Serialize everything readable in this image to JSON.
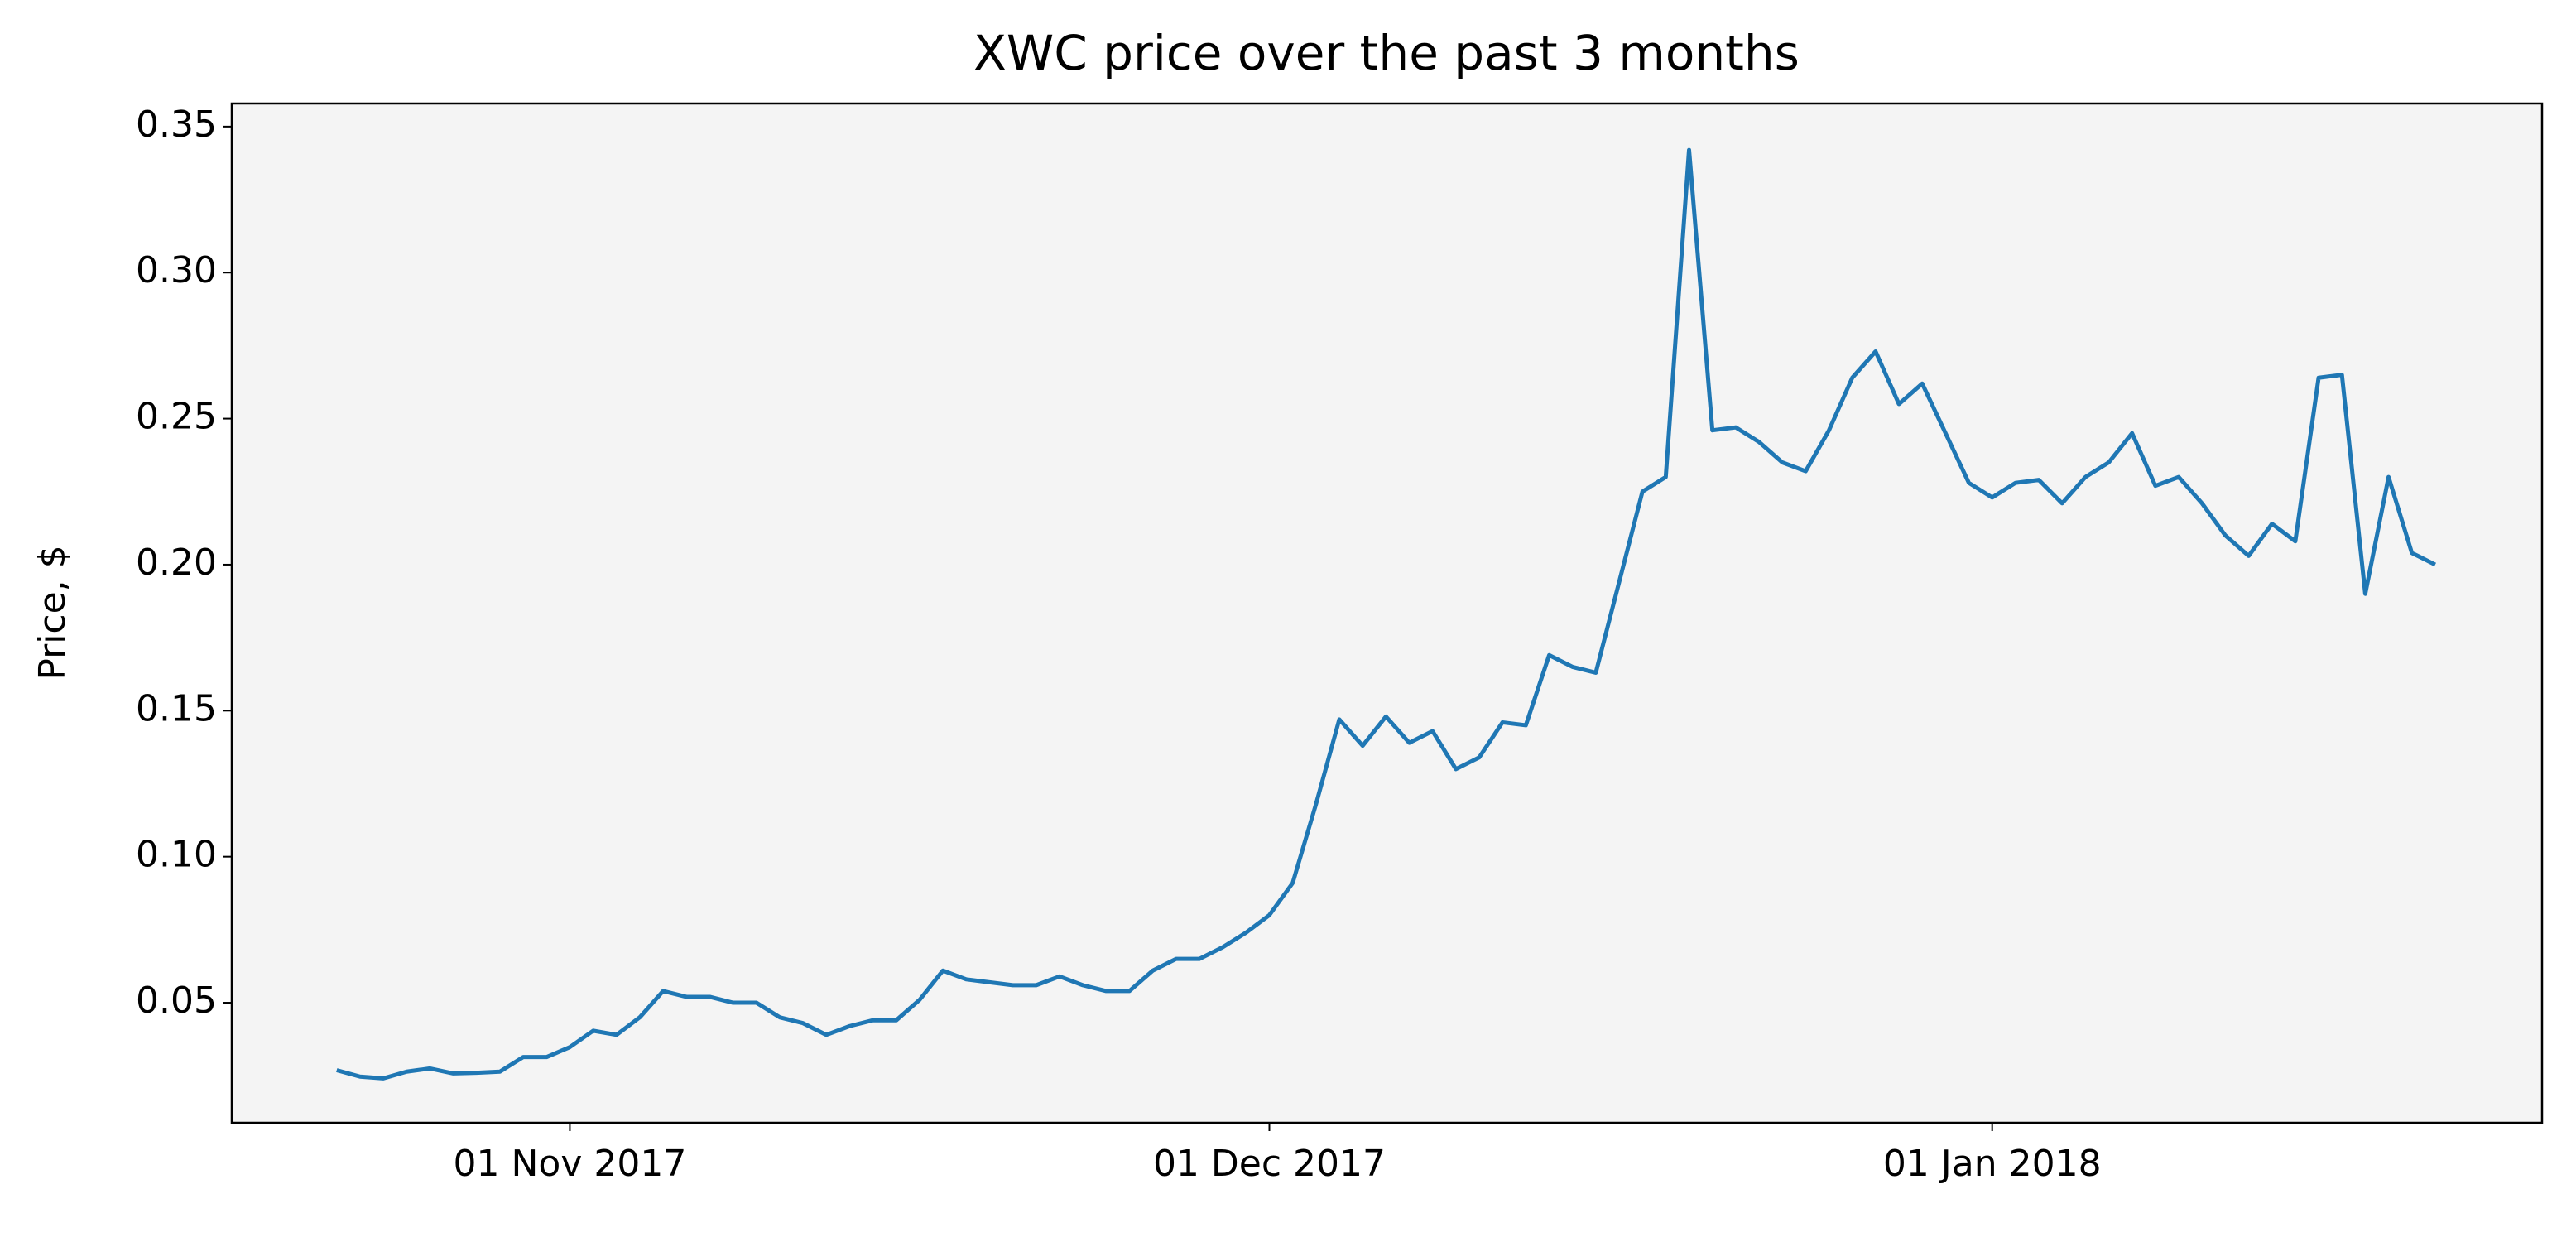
{
  "chart_data": {
    "type": "line",
    "title": "XWC price over the past 3 months",
    "ylabel": "Price, $",
    "color": "#1f77b4",
    "grid": false,
    "x": [
      "2017-10-22",
      "2017-10-23",
      "2017-10-24",
      "2017-10-25",
      "2017-10-26",
      "2017-10-27",
      "2017-10-28",
      "2017-10-29",
      "2017-10-30",
      "2017-10-31",
      "2017-11-01",
      "2017-11-02",
      "2017-11-03",
      "2017-11-04",
      "2017-11-05",
      "2017-11-06",
      "2017-11-07",
      "2017-11-08",
      "2017-11-09",
      "2017-11-10",
      "2017-11-11",
      "2017-11-12",
      "2017-11-13",
      "2017-11-14",
      "2017-11-15",
      "2017-11-16",
      "2017-11-17",
      "2017-11-18",
      "2017-11-19",
      "2017-11-20",
      "2017-11-21",
      "2017-11-22",
      "2017-11-23",
      "2017-11-24",
      "2017-11-25",
      "2017-11-26",
      "2017-11-27",
      "2017-11-28",
      "2017-11-29",
      "2017-11-30",
      "2017-12-01",
      "2017-12-02",
      "2017-12-03",
      "2017-12-04",
      "2017-12-05",
      "2017-12-06",
      "2017-12-07",
      "2017-12-08",
      "2017-12-09",
      "2017-12-10",
      "2017-12-11",
      "2017-12-12",
      "2017-12-13",
      "2017-12-14",
      "2017-12-15",
      "2017-12-16",
      "2017-12-17",
      "2017-12-18",
      "2017-12-19",
      "2017-12-20",
      "2017-12-21",
      "2017-12-22",
      "2017-12-23",
      "2017-12-24",
      "2017-12-25",
      "2017-12-26",
      "2017-12-27",
      "2017-12-28",
      "2017-12-29",
      "2017-12-30",
      "2017-12-31",
      "2018-01-01",
      "2018-01-02",
      "2018-01-03",
      "2018-01-04",
      "2018-01-05",
      "2018-01-06",
      "2018-01-07",
      "2018-01-08",
      "2018-01-09",
      "2018-01-10",
      "2018-01-11",
      "2018-01-12",
      "2018-01-13",
      "2018-01-14",
      "2018-01-15",
      "2018-01-16",
      "2018-01-17",
      "2018-01-18",
      "2018-01-19",
      "2018-01-20"
    ],
    "values": [
      0.0269,
      0.0247,
      0.0241,
      0.0264,
      0.0275,
      0.0258,
      0.026,
      0.0264,
      0.0314,
      0.0314,
      0.0348,
      0.0404,
      0.039,
      0.045,
      0.054,
      0.052,
      0.052,
      0.05,
      0.05,
      0.045,
      0.043,
      0.039,
      0.042,
      0.044,
      0.044,
      0.051,
      0.061,
      0.058,
      0.057,
      0.056,
      0.056,
      0.059,
      0.056,
      0.054,
      0.054,
      0.061,
      0.065,
      0.065,
      0.069,
      0.074,
      0.08,
      0.091,
      0.118,
      0.147,
      0.138,
      0.148,
      0.139,
      0.143,
      0.13,
      0.134,
      0.146,
      0.145,
      0.169,
      0.165,
      0.163,
      0.194,
      0.225,
      0.23,
      0.342,
      0.246,
      0.247,
      0.242,
      0.235,
      0.232,
      0.246,
      0.264,
      0.273,
      0.255,
      0.262,
      0.245,
      0.228,
      0.223,
      0.228,
      0.229,
      0.221,
      0.23,
      0.235,
      0.245,
      0.227,
      0.23,
      0.221,
      0.21,
      0.203,
      0.214,
      0.208,
      0.264,
      0.265,
      0.19,
      0.23,
      0.204,
      0.2
    ],
    "xlim": [
      "2017-10-17T12:00",
      "2018-01-24T14:00"
    ],
    "xticks": [
      {
        "value": "2017-11-01",
        "label": "01 Nov 2017"
      },
      {
        "value": "2017-12-01",
        "label": "01 Dec 2017"
      },
      {
        "value": "2018-01-01",
        "label": "01 Jan 2018"
      }
    ],
    "ylim": [
      0.0089,
      0.3579
    ],
    "yticks": [
      0.05,
      {
        "value": 0.1,
        "label": "0.10"
      },
      0.15,
      {
        "value": 0.2,
        "label": "0.20"
      },
      0.25,
      {
        "value": 0.3,
        "label": "0.30"
      },
      0.35
    ]
  }
}
